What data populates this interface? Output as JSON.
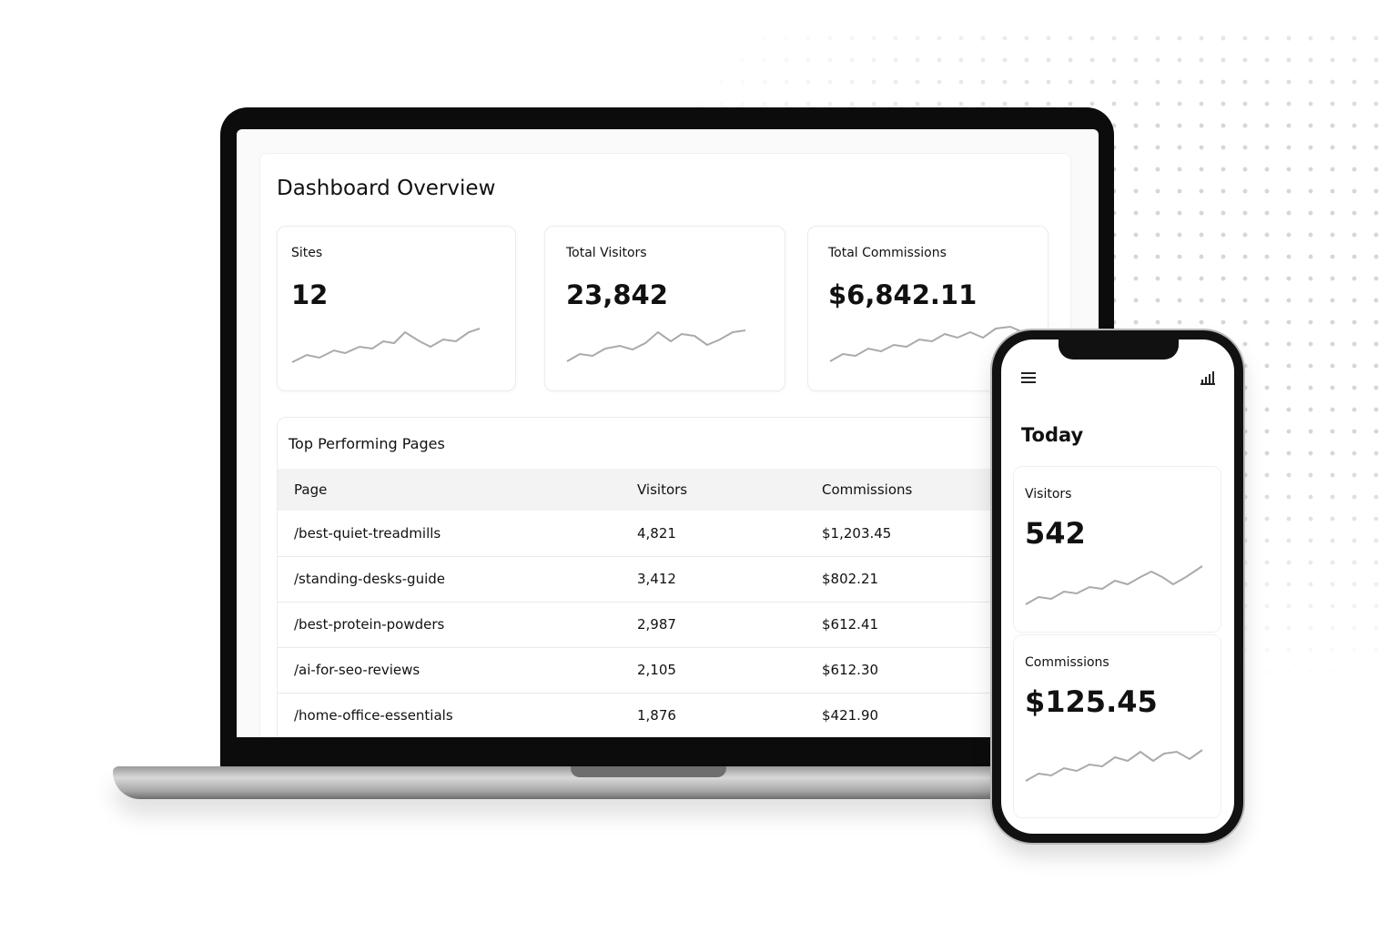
{
  "dashboard": {
    "title": "Dashboard Overview",
    "cards": [
      {
        "label": "Sites",
        "value": "12"
      },
      {
        "label": "Total Visitors",
        "value": "23,842"
      },
      {
        "label": "Total Commissions",
        "value": "$6,842.11"
      }
    ],
    "table": {
      "title": "Top Performing Pages",
      "columns": [
        "Page",
        "Visitors",
        "Commissions"
      ],
      "rows": [
        [
          "/best-quiet-treadmills",
          "4,821",
          "$1,203.45"
        ],
        [
          "/standing-desks-guide",
          "3,412",
          "$802.21"
        ],
        [
          "/best-protein-powders",
          "2,987",
          "$612.41"
        ],
        [
          "/ai-for-seo-reviews",
          "2,105",
          "$612.30"
        ],
        [
          "/home-office-essentials",
          "1,876",
          "$421.90"
        ]
      ]
    }
  },
  "phone": {
    "title": "Today",
    "cards": [
      {
        "label": "Visitors",
        "value": "542"
      },
      {
        "label": "Commissions",
        "value": "$125.45"
      }
    ]
  }
}
